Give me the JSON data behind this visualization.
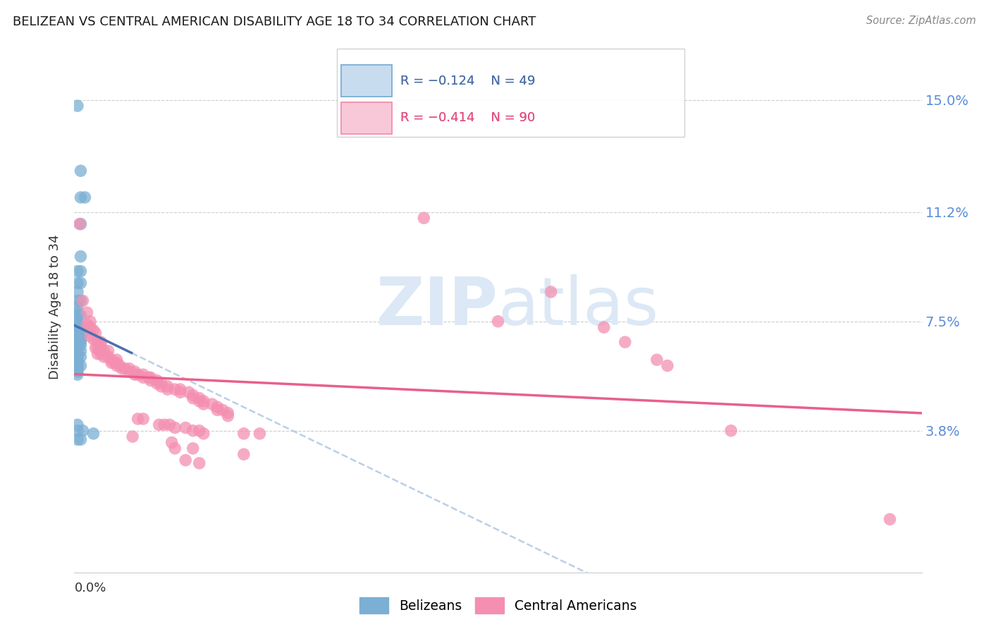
{
  "title": "BELIZEAN VS CENTRAL AMERICAN DISABILITY AGE 18 TO 34 CORRELATION CHART",
  "source": "Source: ZipAtlas.com",
  "ylabel": "Disability Age 18 to 34",
  "ytick_labels": [
    "15.0%",
    "11.2%",
    "7.5%",
    "3.8%"
  ],
  "ytick_values": [
    0.15,
    0.112,
    0.075,
    0.038
  ],
  "xlim": [
    0.0,
    0.8
  ],
  "ylim": [
    -0.01,
    0.17
  ],
  "belizean_color": "#7bafd4",
  "central_american_color": "#f48fb1",
  "trendline_blue": "#4a6eb0",
  "trendline_pink": "#e8608a",
  "trendline_dashed": "#aac4e0",
  "watermark_color": "#dce8f5",
  "grid_color": "#cccccc",
  "belizean_points": [
    [
      0.003,
      0.148
    ],
    [
      0.006,
      0.126
    ],
    [
      0.006,
      0.117
    ],
    [
      0.01,
      0.117
    ],
    [
      0.006,
      0.108
    ],
    [
      0.006,
      0.097
    ],
    [
      0.003,
      0.092
    ],
    [
      0.006,
      0.092
    ],
    [
      0.003,
      0.088
    ],
    [
      0.006,
      0.088
    ],
    [
      0.003,
      0.085
    ],
    [
      0.003,
      0.082
    ],
    [
      0.006,
      0.082
    ],
    [
      0.003,
      0.08
    ],
    [
      0.003,
      0.078
    ],
    [
      0.003,
      0.077
    ],
    [
      0.006,
      0.077
    ],
    [
      0.003,
      0.075
    ],
    [
      0.003,
      0.074
    ],
    [
      0.003,
      0.073
    ],
    [
      0.006,
      0.073
    ],
    [
      0.003,
      0.072
    ],
    [
      0.003,
      0.071
    ],
    [
      0.008,
      0.071
    ],
    [
      0.003,
      0.07
    ],
    [
      0.006,
      0.07
    ],
    [
      0.003,
      0.069
    ],
    [
      0.006,
      0.069
    ],
    [
      0.003,
      0.068
    ],
    [
      0.006,
      0.068
    ],
    [
      0.003,
      0.067
    ],
    [
      0.006,
      0.067
    ],
    [
      0.003,
      0.066
    ],
    [
      0.003,
      0.065
    ],
    [
      0.006,
      0.065
    ],
    [
      0.003,
      0.064
    ],
    [
      0.003,
      0.063
    ],
    [
      0.006,
      0.063
    ],
    [
      0.003,
      0.062
    ],
    [
      0.003,
      0.061
    ],
    [
      0.003,
      0.06
    ],
    [
      0.006,
      0.06
    ],
    [
      0.003,
      0.059
    ],
    [
      0.003,
      0.058
    ],
    [
      0.003,
      0.057
    ],
    [
      0.003,
      0.04
    ],
    [
      0.003,
      0.038
    ],
    [
      0.008,
      0.038
    ],
    [
      0.018,
      0.037
    ],
    [
      0.003,
      0.035
    ],
    [
      0.006,
      0.035
    ]
  ],
  "central_american_points": [
    [
      0.005,
      0.108
    ],
    [
      0.008,
      0.082
    ],
    [
      0.012,
      0.078
    ],
    [
      0.015,
      0.075
    ],
    [
      0.012,
      0.074
    ],
    [
      0.015,
      0.073
    ],
    [
      0.018,
      0.072
    ],
    [
      0.02,
      0.071
    ],
    [
      0.015,
      0.07
    ],
    [
      0.018,
      0.069
    ],
    [
      0.022,
      0.068
    ],
    [
      0.025,
      0.068
    ],
    [
      0.025,
      0.067
    ],
    [
      0.02,
      0.066
    ],
    [
      0.022,
      0.066
    ],
    [
      0.025,
      0.065
    ],
    [
      0.028,
      0.065
    ],
    [
      0.032,
      0.065
    ],
    [
      0.022,
      0.064
    ],
    [
      0.025,
      0.064
    ],
    [
      0.028,
      0.063
    ],
    [
      0.032,
      0.063
    ],
    [
      0.035,
      0.062
    ],
    [
      0.04,
      0.062
    ],
    [
      0.035,
      0.061
    ],
    [
      0.038,
      0.061
    ],
    [
      0.04,
      0.061
    ],
    [
      0.04,
      0.06
    ],
    [
      0.043,
      0.06
    ],
    [
      0.045,
      0.059
    ],
    [
      0.048,
      0.059
    ],
    [
      0.052,
      0.059
    ],
    [
      0.052,
      0.058
    ],
    [
      0.057,
      0.058
    ],
    [
      0.057,
      0.057
    ],
    [
      0.06,
      0.057
    ],
    [
      0.065,
      0.057
    ],
    [
      0.065,
      0.056
    ],
    [
      0.07,
      0.056
    ],
    [
      0.072,
      0.056
    ],
    [
      0.072,
      0.055
    ],
    [
      0.078,
      0.055
    ],
    [
      0.078,
      0.054
    ],
    [
      0.082,
      0.054
    ],
    [
      0.082,
      0.053
    ],
    [
      0.088,
      0.053
    ],
    [
      0.088,
      0.052
    ],
    [
      0.095,
      0.052
    ],
    [
      0.1,
      0.052
    ],
    [
      0.1,
      0.051
    ],
    [
      0.108,
      0.051
    ],
    [
      0.112,
      0.05
    ],
    [
      0.112,
      0.049
    ],
    [
      0.118,
      0.049
    ],
    [
      0.118,
      0.048
    ],
    [
      0.122,
      0.048
    ],
    [
      0.122,
      0.047
    ],
    [
      0.13,
      0.047
    ],
    [
      0.135,
      0.046
    ],
    [
      0.135,
      0.045
    ],
    [
      0.14,
      0.045
    ],
    [
      0.145,
      0.044
    ],
    [
      0.145,
      0.043
    ],
    [
      0.06,
      0.042
    ],
    [
      0.065,
      0.042
    ],
    [
      0.08,
      0.04
    ],
    [
      0.085,
      0.04
    ],
    [
      0.09,
      0.04
    ],
    [
      0.095,
      0.039
    ],
    [
      0.105,
      0.039
    ],
    [
      0.112,
      0.038
    ],
    [
      0.118,
      0.038
    ],
    [
      0.122,
      0.037
    ],
    [
      0.16,
      0.037
    ],
    [
      0.175,
      0.037
    ],
    [
      0.055,
      0.036
    ],
    [
      0.092,
      0.034
    ],
    [
      0.095,
      0.032
    ],
    [
      0.112,
      0.032
    ],
    [
      0.16,
      0.03
    ],
    [
      0.105,
      0.028
    ],
    [
      0.118,
      0.027
    ],
    [
      0.33,
      0.11
    ],
    [
      0.45,
      0.085
    ],
    [
      0.4,
      0.075
    ],
    [
      0.5,
      0.073
    ],
    [
      0.52,
      0.068
    ],
    [
      0.55,
      0.062
    ],
    [
      0.56,
      0.06
    ],
    [
      0.62,
      0.038
    ],
    [
      0.77,
      0.008
    ]
  ]
}
